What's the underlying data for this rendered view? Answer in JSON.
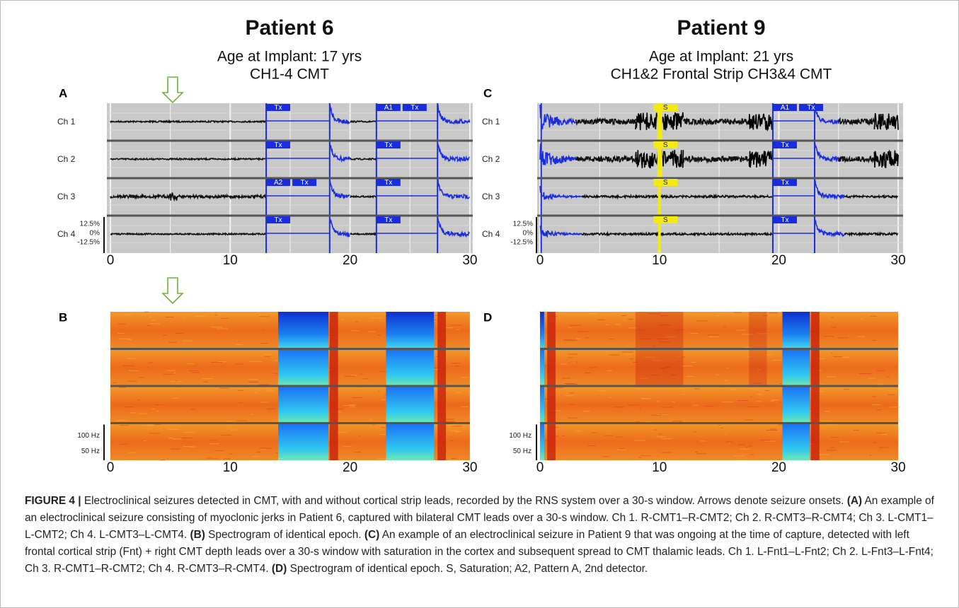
{
  "panels": [
    {
      "patient": "Patient 6",
      "subtitle": [
        "Age at Implant: 17 yrs",
        "CH1-4 CMT"
      ],
      "trace_label": "A",
      "spectrogram_label": "B"
    },
    {
      "patient": "Patient 9",
      "subtitle": [
        "Age at Implant: 21 yrs",
        "CH1&2 Frontal Strip CH3&4 CMT"
      ],
      "trace_label": "C",
      "spectrogram_label": "D"
    }
  ],
  "channels": [
    "Ch 1",
    "Ch 2",
    "Ch 3",
    "Ch 4"
  ],
  "amplitude_scale": [
    "12.5%",
    "0%",
    "-12.5%"
  ],
  "frequency_scale": [
    "100 Hz",
    "50 Hz"
  ],
  "time_ticks": [
    0,
    10,
    20,
    30
  ],
  "markers": {
    "tx": "Tx",
    "a1": "A1",
    "a2": "A2",
    "s": "S"
  },
  "caption": {
    "label": "FIGURE 4 |",
    "intro": "Electroclinical seizures detected in CMT, with and without cortical strip leads, recorded by the RNS system over a 30-s window. Arrows denote seizure onsets.",
    "parts": [
      {
        "label": "(A)",
        "text": "An example of an electroclinical seizure consisting of myoclonic jerks in Patient 6, captured with bilateral CMT leads over a 30-s window. Ch 1. R-CMT1–R-CMT2; Ch 2. R-CMT3–R-CMT4; Ch 3. L-CMT1–L-CMT2; Ch 4. L-CMT3–L-CMT4."
      },
      {
        "label": "(B)",
        "text": "Spectrogram of identical epoch."
      },
      {
        "label": "(C)",
        "text": "An example of an electroclinical seizure in Patient 9 that was ongoing at the time of capture, detected with left frontal cortical strip (Fnt) + right CMT depth leads over a 30-s window with saturation in the cortex and subsequent spread to CMT thalamic leads. Ch 1. L-Fnt1–L-Fnt2; Ch 2. L-Fnt3–L-Fnt4; Ch 3. R-CMT1–R-CMT2; Ch 4. R-CMT3–R-CMT4."
      },
      {
        "label": "(D)",
        "text": "Spectrogram of identical epoch. S, Saturation; A2, Pattern A, 2nd detector."
      }
    ]
  }
}
